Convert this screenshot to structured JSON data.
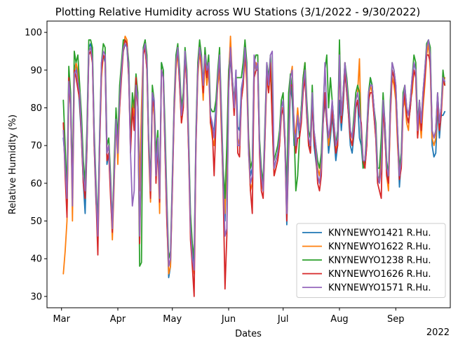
{
  "chart_data": {
    "type": "line",
    "title": "Plotting Relative Humidity across WU Stations (3/1/2022 - 9/30/2022)",
    "xlabel": "Dates",
    "ylabel": "Relative Humidity (%)",
    "x_offset_label": "2022",
    "x_ticks": [
      {
        "label": "Mar",
        "date": "2022-03-01"
      },
      {
        "label": "Apr",
        "date": "2022-04-01"
      },
      {
        "label": "May",
        "date": "2022-05-01"
      },
      {
        "label": "Jun",
        "date": "2022-06-01"
      },
      {
        "label": "Jul",
        "date": "2022-07-01"
      },
      {
        "label": "Aug",
        "date": "2022-08-01"
      },
      {
        "label": "Sep",
        "date": "2022-09-01"
      }
    ],
    "xlim": [
      "2022-02-21",
      "2022-10-01"
    ],
    "y_ticks": [
      30,
      40,
      50,
      60,
      70,
      80,
      90,
      100
    ],
    "ylim": [
      27,
      103
    ],
    "legend_position": "lower-right",
    "grid": false,
    "x_start": "2022-03-02",
    "x_step_days": 1,
    "series": [
      {
        "name": "KNYNEWYO1421",
        "legend_label": "KNYNEWYO1421 R.Hu.",
        "color": "#1f77b4",
        "values": [
          72,
          66,
          52,
          88,
          80,
          58,
          90,
          92,
          88,
          80,
          72,
          60,
          52,
          70,
          96,
          97,
          94,
          70,
          55,
          50,
          72,
          90,
          94,
          92,
          65,
          68,
          58,
          50,
          62,
          75,
          70,
          82,
          90,
          95,
          97,
          96,
          88,
          70,
          80,
          75,
          88,
          82,
          60,
          78,
          94,
          98,
          92,
          70,
          58,
          84,
          80,
          66,
          72,
          55,
          92,
          90,
          70,
          52,
          35,
          38,
          60,
          80,
          92,
          96,
          88,
          78,
          82,
          95,
          88,
          70,
          50,
          42,
          38,
          72,
          90,
          96,
          92,
          84,
          94,
          88,
          92,
          78,
          75,
          74,
          80,
          88,
          92,
          76,
          60,
          50,
          66,
          85,
          94,
          86,
          80,
          90,
          75,
          74,
          85,
          88,
          95,
          90,
          70,
          62,
          64,
          88,
          90,
          92,
          70,
          62,
          58,
          74,
          90,
          85,
          92,
          78,
          64,
          66,
          68,
          72,
          80,
          82,
          70,
          49,
          68,
          86,
          82,
          70,
          72,
          78,
          72,
          80,
          86,
          90,
          78,
          72,
          68,
          82,
          70,
          66,
          62,
          60,
          64,
          76,
          82,
          76,
          68,
          72,
          78,
          72,
          66,
          70,
          82,
          74,
          80,
          90,
          84,
          78,
          70,
          68,
          73,
          80,
          82,
          72,
          70,
          64,
          66,
          72,
          80,
          88,
          86,
          80,
          74,
          60,
          62,
          70,
          82,
          72,
          64,
          60,
          80,
          90,
          88,
          84,
          72,
          59,
          66,
          82,
          84,
          78,
          76,
          80,
          86,
          92,
          90,
          75,
          80,
          74,
          82,
          88,
          96,
          98,
          92,
          70,
          67,
          68,
          80,
          72,
          78,
          78,
          79
        ]
      },
      {
        "name": "KNYNEWYO1622",
        "legend_label": "KNYNEWYO1622 R.Hu.",
        "color": "#ff7f0e",
        "values": [
          36,
          42,
          50,
          86,
          82,
          50,
          88,
          92,
          90,
          84,
          75,
          62,
          56,
          72,
          95,
          96,
          92,
          72,
          58,
          44,
          70,
          88,
          94,
          93,
          68,
          70,
          58,
          45,
          60,
          78,
          65,
          80,
          90,
          96,
          99,
          98,
          90,
          72,
          82,
          78,
          86,
          80,
          58,
          80,
          95,
          96,
          90,
          68,
          55,
          82,
          78,
          62,
          70,
          52,
          90,
          88,
          68,
          50,
          36,
          38,
          58,
          78,
          90,
          95,
          86,
          76,
          80,
          94,
          86,
          68,
          48,
          40,
          36,
          70,
          88,
          95,
          90,
          82,
          92,
          86,
          90,
          76,
          72,
          70,
          78,
          86,
          90,
          74,
          60,
          52,
          68,
          88,
          99,
          88,
          80,
          86,
          72,
          70,
          82,
          86,
          94,
          86,
          68,
          58,
          60,
          90,
          92,
          90,
          70,
          60,
          58,
          72,
          88,
          84,
          90,
          76,
          62,
          64,
          66,
          70,
          80,
          80,
          72,
          52,
          70,
          88,
          91,
          72,
          74,
          80,
          74,
          78,
          88,
          92,
          80,
          70,
          70,
          84,
          72,
          68,
          64,
          62,
          66,
          78,
          84,
          78,
          70,
          74,
          80,
          74,
          68,
          72,
          96,
          76,
          82,
          92,
          86,
          80,
          72,
          70,
          75,
          82,
          84,
          93,
          72,
          66,
          64,
          70,
          82,
          86,
          84,
          78,
          72,
          62,
          60,
          68,
          80,
          74,
          62,
          58,
          78,
          88,
          86,
          82,
          70,
          62,
          64,
          80,
          82,
          76,
          74,
          82,
          84,
          90,
          88,
          72,
          78,
          72,
          80,
          86,
          94,
          97,
          90,
          72,
          70,
          72,
          82,
          74,
          78,
          86,
          88
        ]
      },
      {
        "name": "KNYNEWYO1238",
        "legend_label": "KNYNEWYO1238 R.Hu.",
        "color": "#2ca02c",
        "values": [
          82,
          70,
          58,
          91,
          84,
          60,
          95,
          92,
          94,
          86,
          78,
          66,
          60,
          75,
          98,
          98,
          96,
          74,
          60,
          48,
          74,
          92,
          97,
          96,
          70,
          72,
          62,
          48,
          66,
          80,
          72,
          86,
          92,
          98,
          98,
          97,
          92,
          70,
          84,
          80,
          89,
          84,
          38,
          39,
          96,
          98,
          94,
          72,
          60,
          86,
          82,
          68,
          74,
          58,
          92,
          90,
          74,
          56,
          40,
          42,
          62,
          82,
          94,
          97,
          90,
          80,
          84,
          96,
          90,
          72,
          52,
          44,
          40,
          74,
          92,
          98,
          94,
          86,
          96,
          90,
          94,
          80,
          79,
          79,
          82,
          90,
          96,
          80,
          64,
          56,
          70,
          90,
          95,
          88,
          82,
          88,
          88,
          88,
          88,
          92,
          98,
          92,
          72,
          64,
          66,
          92,
          94,
          94,
          72,
          64,
          60,
          76,
          92,
          88,
          94,
          80,
          66,
          68,
          70,
          74,
          82,
          84,
          72,
          58,
          84,
          89,
          84,
          74,
          58,
          62,
          72,
          80,
          88,
          92,
          82,
          74,
          72,
          86,
          74,
          70,
          66,
          64,
          68,
          80,
          90,
          94,
          80,
          88,
          82,
          76,
          70,
          74,
          98,
          78,
          84,
          92,
          88,
          82,
          74,
          72,
          78,
          84,
          86,
          84,
          72,
          64,
          66,
          74,
          84,
          88,
          86,
          80,
          76,
          64,
          64,
          72,
          84,
          76,
          66,
          62,
          82,
          92,
          90,
          86,
          74,
          64,
          68,
          84,
          86,
          80,
          78,
          82,
          88,
          94,
          92,
          76,
          82,
          76,
          84,
          90,
          97,
          98,
          96,
          74,
          72,
          74,
          84,
          76,
          80,
          90,
          86
        ]
      },
      {
        "name": "KNYNEWYO1626",
        "legend_label": "KNYNEWYO1626 R.Hu.",
        "color": "#d62728",
        "values": [
          76,
          62,
          51,
          88,
          80,
          56,
          90,
          88,
          85,
          82,
          72,
          60,
          56,
          70,
          94,
          95,
          92,
          70,
          56,
          41,
          70,
          90,
          94,
          93,
          66,
          68,
          56,
          47,
          62,
          76,
          70,
          80,
          88,
          95,
          98,
          97,
          88,
          68,
          80,
          74,
          88,
          80,
          44,
          70,
          94,
          96,
          90,
          70,
          56,
          82,
          80,
          60,
          70,
          55,
          90,
          88,
          68,
          50,
          38,
          40,
          58,
          80,
          92,
          95,
          86,
          76,
          80,
          94,
          86,
          68,
          45,
          38,
          30,
          70,
          90,
          96,
          92,
          84,
          94,
          88,
          92,
          76,
          74,
          62,
          76,
          88,
          92,
          76,
          58,
          32,
          46,
          86,
          96,
          86,
          78,
          88,
          68,
          67,
          82,
          86,
          95,
          88,
          70,
          58,
          52,
          88,
          90,
          90,
          68,
          58,
          56,
          72,
          90,
          84,
          92,
          76,
          62,
          64,
          66,
          70,
          78,
          80,
          70,
          50,
          70,
          86,
          86,
          76,
          68,
          72,
          72,
          76,
          84,
          88,
          78,
          70,
          68,
          82,
          72,
          68,
          60,
          58,
          62,
          76,
          84,
          76,
          72,
          74,
          80,
          74,
          68,
          70,
          92,
          76,
          82,
          90,
          84,
          78,
          72,
          70,
          74,
          80,
          82,
          78,
          76,
          66,
          64,
          70,
          82,
          84,
          84,
          78,
          72,
          60,
          58,
          56,
          80,
          74,
          62,
          60,
          78,
          90,
          88,
          84,
          72,
          61,
          64,
          80,
          84,
          78,
          76,
          80,
          86,
          90,
          88,
          72,
          80,
          74,
          82,
          88,
          94,
          94,
          92,
          74,
          72,
          74,
          82,
          74,
          78,
          88,
          86
        ]
      },
      {
        "name": "KNYNEWYO1571",
        "legend_label": "KNYNEWYO1571 R.Hu.",
        "color": "#9467bd",
        "values": [
          74,
          64,
          56,
          87,
          82,
          54,
          89,
          90,
          87,
          84,
          74,
          62,
          58,
          72,
          95,
          96,
          93,
          72,
          58,
          46,
          72,
          92,
          95,
          94,
          68,
          70,
          60,
          48,
          62,
          77,
          68,
          82,
          90,
          96,
          97,
          96,
          90,
          68,
          54,
          58,
          86,
          82,
          46,
          70,
          95,
          97,
          92,
          70,
          58,
          84,
          82,
          62,
          72,
          56,
          90,
          88,
          70,
          54,
          38,
          40,
          60,
          80,
          92,
          96,
          88,
          78,
          82,
          95,
          88,
          70,
          48,
          40,
          37,
          72,
          90,
          96,
          93,
          86,
          94,
          90,
          92,
          78,
          76,
          72,
          78,
          88,
          94,
          78,
          60,
          46,
          48,
          84,
          96,
          88,
          80,
          90,
          70,
          70,
          84,
          88,
          96,
          90,
          68,
          60,
          62,
          94,
          90,
          92,
          70,
          62,
          58,
          74,
          92,
          86,
          94,
          95,
          64,
          66,
          68,
          72,
          80,
          82,
          72,
          52,
          72,
          88,
          90,
          74,
          70,
          78,
          74,
          78,
          86,
          90,
          80,
          72,
          70,
          84,
          74,
          70,
          62,
          60,
          64,
          78,
          92,
          78,
          72,
          76,
          82,
          76,
          70,
          72,
          94,
          78,
          84,
          92,
          86,
          80,
          74,
          72,
          76,
          82,
          84,
          80,
          74,
          66,
          66,
          72,
          84,
          86,
          86,
          80,
          74,
          62,
          60,
          64,
          82,
          76,
          64,
          62,
          80,
          92,
          90,
          86,
          74,
          62,
          66,
          82,
          86,
          80,
          78,
          82,
          88,
          92,
          90,
          74,
          82,
          76,
          84,
          90,
          96,
          98,
          94,
          74,
          72,
          74,
          84,
          76,
          80,
          88,
          87
        ]
      }
    ]
  }
}
